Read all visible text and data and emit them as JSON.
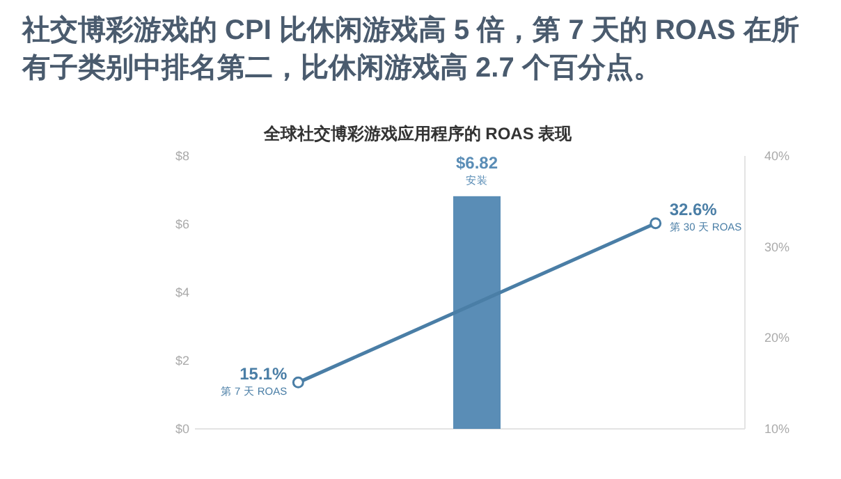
{
  "chart_data": {
    "type": "bar",
    "title": "全球社交博彩游戏应用程序的 ROAS 表现",
    "subtitle": "社交博彩游戏的 CPI 比休闲游戏高 5 倍，第 7 天的 ROAS 在所有子类别中排名第二，比休闲游戏高 2.7 个百分点。",
    "categories": [
      null,
      null,
      null
    ],
    "series": [
      {
        "color": "#5a8db6",
        "values": [
          null,
          6.82,
          null
        ],
        "value_labels": [
          null,
          "$6.82",
          null
        ]
      },
      {
        "type": "line",
        "axis": "y2",
        "color": "#4a7ea6",
        "marker": "circle",
        "values": [
          15.1,
          null,
          32.6
        ],
        "value_labels": [
          "15.1%",
          null,
          "32.6%"
        ]
      }
    ],
    "annotations": [
      "第 7 天 ROAS",
      "安装",
      "第 30 天 ROAS"
    ],
    "ylim": [
      0,
      8
    ],
    "yticks": [
      {
        "value": 0,
        "label": "$0"
      },
      {
        "value": 2,
        "label": "$2"
      },
      {
        "value": 4,
        "label": "$4"
      },
      {
        "value": 6,
        "label": "$6"
      },
      {
        "value": 8,
        "label": "$8"
      }
    ],
    "y2lim": [
      10,
      40
    ],
    "y2ticks": [
      {
        "value": 10,
        "label": "10%"
      },
      {
        "value": 20,
        "label": "20%"
      },
      {
        "value": 30,
        "label": "30%"
      },
      {
        "value": 40,
        "label": "40%"
      }
    ]
  }
}
